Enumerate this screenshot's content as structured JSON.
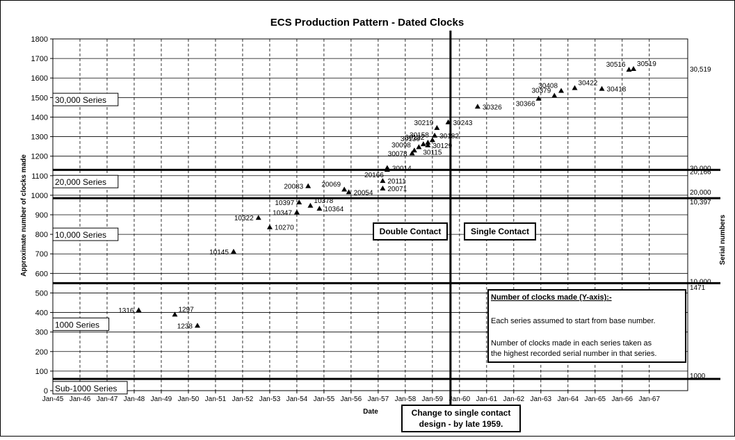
{
  "chart_data": {
    "type": "scatter",
    "title": "ECS Production Pattern - Dated Clocks",
    "xlabel": "Date",
    "ylabel": "Approximate number of clocks made",
    "y2label": "Serial numbers",
    "ylim": [
      0,
      1800
    ],
    "yticks": [
      0,
      100,
      200,
      300,
      400,
      500,
      600,
      700,
      800,
      900,
      1000,
      1100,
      1200,
      1300,
      1400,
      1500,
      1600,
      1700,
      1800
    ],
    "xlim": [
      "1945-01",
      "1968-06"
    ],
    "xticks": [
      "Jan-45",
      "Jan-46",
      "Jan-47",
      "Jan-48",
      "Jan-49",
      "Jan-50",
      "Jan-51",
      "Jan-52",
      "Jan-53",
      "Jan-54",
      "Jan-55",
      "Jan-56",
      "Jan-57",
      "Jan-58",
      "Jan-59",
      "Jan-60",
      "Jan-61",
      "Jan-62",
      "Jan-63",
      "Jan-64",
      "Jan-65",
      "Jan-66",
      "Jan-67"
    ],
    "grid": true,
    "marker": "triangle",
    "points": [
      {
        "x": "1948-03",
        "y": 412,
        "label": "1316",
        "label_pos": "left"
      },
      {
        "x": "1949-07",
        "y": 390,
        "label": "1297",
        "label_pos": "right-up"
      },
      {
        "x": "1950-05",
        "y": 333,
        "label": "1238",
        "label_pos": "left"
      },
      {
        "x": "1951-09",
        "y": 712,
        "label": "10145",
        "label_pos": "left"
      },
      {
        "x": "1952-08",
        "y": 885,
        "label": "10322",
        "label_pos": "left"
      },
      {
        "x": "1953-01",
        "y": 837,
        "label": "10270",
        "label_pos": "right"
      },
      {
        "x": "1954-01",
        "y": 913,
        "label": "10347",
        "label_pos": "left"
      },
      {
        "x": "1954-02",
        "y": 964,
        "label": "10397",
        "label_pos": "left"
      },
      {
        "x": "1954-07",
        "y": 947,
        "label": "10378",
        "label_pos": "right-up"
      },
      {
        "x": "1954-11",
        "y": 932,
        "label": "10364",
        "label_pos": "right"
      },
      {
        "x": "1954-06",
        "y": 1047,
        "label": "20083",
        "label_pos": "left"
      },
      {
        "x": "1955-10",
        "y": 1030,
        "label": "20069",
        "label_pos": "left-up"
      },
      {
        "x": "1955-12",
        "y": 1016,
        "label": "20054",
        "label_pos": "right"
      },
      {
        "x": "1957-03",
        "y": 1035,
        "label": "20071",
        "label_pos": "right"
      },
      {
        "x": "1957-03",
        "y": 1074,
        "label": "20111",
        "label_pos": "right"
      },
      {
        "x": "1957-05",
        "y": 1131,
        "label": "20166",
        "label_pos": "left-down"
      },
      {
        "x": "1957-05",
        "y": 1140,
        "label": "30014",
        "label_pos": "right"
      },
      {
        "x": "1958-04",
        "y": 1215,
        "label": "30078",
        "label_pos": "left"
      },
      {
        "x": "1958-05",
        "y": 1230,
        "label": "30098",
        "label_pos": "left-up"
      },
      {
        "x": "1958-07",
        "y": 1247,
        "label": "30115",
        "label_pos": "right-down"
      },
      {
        "x": "1958-09",
        "y": 1262,
        "label": "30136",
        "label_pos": "left-up"
      },
      {
        "x": "1958-11",
        "y": 1256,
        "label": "30129",
        "label_pos": "right"
      },
      {
        "x": "1958-11",
        "y": 1270,
        "label": "30132",
        "label_pos": "left-up"
      },
      {
        "x": "1959-02",
        "y": 1306,
        "label": "30182",
        "label_pos": "right"
      },
      {
        "x": "1959-03",
        "y": 1345,
        "label": "30219",
        "label_pos": "left-up"
      },
      {
        "x": "1959-01",
        "y": 1283,
        "label": "30158",
        "label_pos": "left-up"
      },
      {
        "x": "1959-08",
        "y": 1374,
        "label": "30243",
        "label_pos": "right"
      },
      {
        "x": "1960-09",
        "y": 1454,
        "label": "30326",
        "label_pos": "right"
      },
      {
        "x": "1962-12",
        "y": 1495,
        "label": "30366",
        "label_pos": "left-down"
      },
      {
        "x": "1963-07",
        "y": 1510,
        "label": "30379",
        "label_pos": "left-up"
      },
      {
        "x": "1963-10",
        "y": 1535,
        "label": "30408",
        "label_pos": "left-up"
      },
      {
        "x": "1964-04",
        "y": 1549,
        "label": "30422",
        "label_pos": "right-up"
      },
      {
        "x": "1965-04",
        "y": 1545,
        "label": "30418",
        "label_pos": "right"
      },
      {
        "x": "1966-04",
        "y": 1643,
        "label": "30516",
        "label_pos": "left-up"
      },
      {
        "x": "1966-06",
        "y": 1647,
        "label": "30519",
        "label_pos": "right-up"
      }
    ],
    "series_bands": [
      {
        "name": "Sub-1000 Series",
        "base": 0,
        "label_y": 15
      },
      {
        "name": "1000 Series",
        "base": 60,
        "label_y": 340
      },
      {
        "name": "10,000 Series",
        "base": 550,
        "label_y": 800
      },
      {
        "name": "20,000 Series",
        "base": 985,
        "label_y": 1070
      },
      {
        "name": "30,000 Series",
        "base": 1130,
        "label_y": 1490
      }
    ],
    "separator_lines": [
      60,
      550,
      985,
      1130
    ],
    "right_axis_labels": [
      {
        "y": 1647,
        "text": "30,519"
      },
      {
        "y": 1140,
        "text": "30,000"
      },
      {
        "y": 1122,
        "text": "20,166"
      },
      {
        "y": 1018,
        "text": "20,000"
      },
      {
        "y": 968,
        "text": "10,397"
      },
      {
        "y": 560,
        "text": "10,000"
      },
      {
        "y": 530,
        "text": "1471"
      },
      {
        "y": 78,
        "text": "1000"
      }
    ],
    "vertical_line": {
      "x": "1959-09"
    },
    "annotations": {
      "double_contact": "Double Contact",
      "single_contact": "Single Contact",
      "change_note_line1": "Change to single contact",
      "change_note_line2": "design - by late 1959.",
      "notes_title": "Number of clocks made (Y-axis):-",
      "notes_line1": "Each series assumed to start from base number.",
      "notes_line2": "Number of clocks made in each series taken as",
      "notes_line3": "the highest recorded serial number in that series."
    }
  }
}
